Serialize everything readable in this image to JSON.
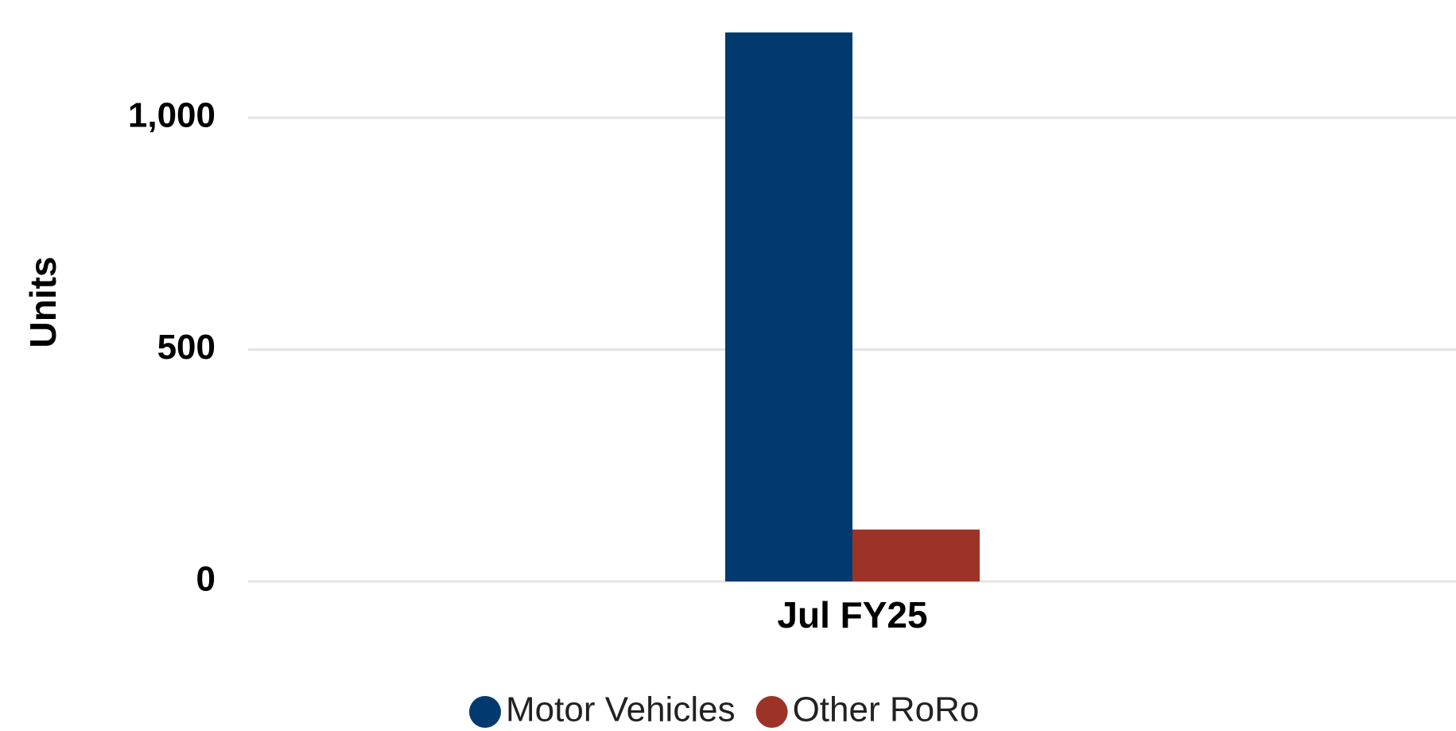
{
  "chart_data": {
    "type": "bar",
    "y_label": "Units",
    "categories": [
      "Jul FY25"
    ],
    "series": [
      {
        "name": "Motor Vehicles",
        "color": "#023a70",
        "values": [
          1184
        ]
      },
      {
        "name": "Other RoRo",
        "color": "#9c3326",
        "values": [
          112
        ]
      }
    ],
    "ylim": [
      0,
      1200
    ],
    "yticks": [
      0,
      500,
      {
        "value": 1000,
        "label": "1,000"
      }
    ],
    "grid": true,
    "legend": "bottom"
  }
}
